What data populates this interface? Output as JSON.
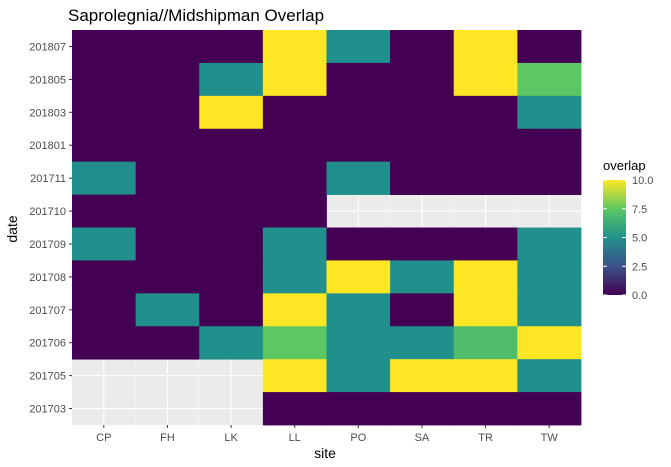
{
  "chart_data": {
    "type": "heatmap",
    "title": "Saprolegnia//Midshipman Overlap",
    "xlabel": "site",
    "ylabel": "date",
    "x_categories": [
      "CP",
      "FH",
      "LK",
      "LL",
      "PO",
      "SA",
      "TR",
      "TW"
    ],
    "y_categories": [
      "201703",
      "201705",
      "201706",
      "201707",
      "201708",
      "201709",
      "201710",
      "201711",
      "201801",
      "201803",
      "201805",
      "201807"
    ],
    "value_range": [
      0,
      10
    ],
    "colormap": [
      "#440154",
      "#3b528b",
      "#21908c",
      "#5dc863",
      "#fde725"
    ],
    "legend": {
      "title": "overlap",
      "placement": "right",
      "breaks": [
        0,
        2.5,
        5,
        7.5,
        10
      ],
      "break_labels": [
        "0.0",
        "2.5",
        "5.0",
        "7.5",
        "10.0"
      ]
    },
    "grid": true,
    "cells": [
      {
        "date": "201807",
        "site": "CP",
        "value": 0
      },
      {
        "date": "201807",
        "site": "FH",
        "value": 0
      },
      {
        "date": "201807",
        "site": "LK",
        "value": 0
      },
      {
        "date": "201807",
        "site": "LL",
        "value": 10
      },
      {
        "date": "201807",
        "site": "PO",
        "value": 5
      },
      {
        "date": "201807",
        "site": "SA",
        "value": 0
      },
      {
        "date": "201807",
        "site": "TR",
        "value": 10
      },
      {
        "date": "201807",
        "site": "TW",
        "value": 0
      },
      {
        "date": "201805",
        "site": "CP",
        "value": 0
      },
      {
        "date": "201805",
        "site": "FH",
        "value": 0
      },
      {
        "date": "201805",
        "site": "LK",
        "value": 5
      },
      {
        "date": "201805",
        "site": "LL",
        "value": 10
      },
      {
        "date": "201805",
        "site": "PO",
        "value": 0
      },
      {
        "date": "201805",
        "site": "SA",
        "value": 0
      },
      {
        "date": "201805",
        "site": "TR",
        "value": 10
      },
      {
        "date": "201805",
        "site": "TW",
        "value": 7.5
      },
      {
        "date": "201803",
        "site": "CP",
        "value": 0
      },
      {
        "date": "201803",
        "site": "FH",
        "value": 0
      },
      {
        "date": "201803",
        "site": "LK",
        "value": 10
      },
      {
        "date": "201803",
        "site": "LL",
        "value": 0
      },
      {
        "date": "201803",
        "site": "PO",
        "value": 0
      },
      {
        "date": "201803",
        "site": "SA",
        "value": 0
      },
      {
        "date": "201803",
        "site": "TR",
        "value": 0
      },
      {
        "date": "201803",
        "site": "TW",
        "value": 5
      },
      {
        "date": "201801",
        "site": "CP",
        "value": 0
      },
      {
        "date": "201801",
        "site": "FH",
        "value": 0
      },
      {
        "date": "201801",
        "site": "LK",
        "value": 0
      },
      {
        "date": "201801",
        "site": "LL",
        "value": 0
      },
      {
        "date": "201801",
        "site": "PO",
        "value": 0
      },
      {
        "date": "201801",
        "site": "SA",
        "value": 0
      },
      {
        "date": "201801",
        "site": "TR",
        "value": 0
      },
      {
        "date": "201801",
        "site": "TW",
        "value": 0
      },
      {
        "date": "201711",
        "site": "CP",
        "value": 5
      },
      {
        "date": "201711",
        "site": "FH",
        "value": 0
      },
      {
        "date": "201711",
        "site": "LK",
        "value": 0
      },
      {
        "date": "201711",
        "site": "LL",
        "value": 0
      },
      {
        "date": "201711",
        "site": "PO",
        "value": 5
      },
      {
        "date": "201711",
        "site": "SA",
        "value": 0
      },
      {
        "date": "201711",
        "site": "TR",
        "value": 0
      },
      {
        "date": "201711",
        "site": "TW",
        "value": 0
      },
      {
        "date": "201710",
        "site": "CP",
        "value": 0
      },
      {
        "date": "201710",
        "site": "FH",
        "value": 0
      },
      {
        "date": "201710",
        "site": "LK",
        "value": 0
      },
      {
        "date": "201710",
        "site": "LL",
        "value": 0
      },
      {
        "date": "201709",
        "site": "CP",
        "value": 5
      },
      {
        "date": "201709",
        "site": "FH",
        "value": 0
      },
      {
        "date": "201709",
        "site": "LK",
        "value": 0
      },
      {
        "date": "201709",
        "site": "LL",
        "value": 5
      },
      {
        "date": "201709",
        "site": "PO",
        "value": 0
      },
      {
        "date": "201709",
        "site": "SA",
        "value": 0
      },
      {
        "date": "201709",
        "site": "TR",
        "value": 0
      },
      {
        "date": "201709",
        "site": "TW",
        "value": 5
      },
      {
        "date": "201708",
        "site": "CP",
        "value": 0
      },
      {
        "date": "201708",
        "site": "FH",
        "value": 0
      },
      {
        "date": "201708",
        "site": "LK",
        "value": 0
      },
      {
        "date": "201708",
        "site": "LL",
        "value": 5
      },
      {
        "date": "201708",
        "site": "PO",
        "value": 10
      },
      {
        "date": "201708",
        "site": "SA",
        "value": 5
      },
      {
        "date": "201708",
        "site": "TR",
        "value": 10
      },
      {
        "date": "201708",
        "site": "TW",
        "value": 5
      },
      {
        "date": "201707",
        "site": "CP",
        "value": 0
      },
      {
        "date": "201707",
        "site": "FH",
        "value": 5
      },
      {
        "date": "201707",
        "site": "LK",
        "value": 0
      },
      {
        "date": "201707",
        "site": "LL",
        "value": 10
      },
      {
        "date": "201707",
        "site": "PO",
        "value": 5
      },
      {
        "date": "201707",
        "site": "SA",
        "value": 0
      },
      {
        "date": "201707",
        "site": "TR",
        "value": 10
      },
      {
        "date": "201707",
        "site": "TW",
        "value": 5
      },
      {
        "date": "201706",
        "site": "CP",
        "value": 0
      },
      {
        "date": "201706",
        "site": "FH",
        "value": 0
      },
      {
        "date": "201706",
        "site": "LK",
        "value": 5
      },
      {
        "date": "201706",
        "site": "LL",
        "value": 7.5
      },
      {
        "date": "201706",
        "site": "PO",
        "value": 5
      },
      {
        "date": "201706",
        "site": "SA",
        "value": 5
      },
      {
        "date": "201706",
        "site": "TR",
        "value": 7
      },
      {
        "date": "201706",
        "site": "TW",
        "value": 10
      },
      {
        "date": "201705",
        "site": "LL",
        "value": 10
      },
      {
        "date": "201705",
        "site": "PO",
        "value": 5
      },
      {
        "date": "201705",
        "site": "SA",
        "value": 10
      },
      {
        "date": "201705",
        "site": "TR",
        "value": 10
      },
      {
        "date": "201705",
        "site": "TW",
        "value": 5
      },
      {
        "date": "201703",
        "site": "LL",
        "value": 0
      },
      {
        "date": "201703",
        "site": "PO",
        "value": 0
      },
      {
        "date": "201703",
        "site": "SA",
        "value": 0
      },
      {
        "date": "201703",
        "site": "TR",
        "value": 0
      },
      {
        "date": "201703",
        "site": "TW",
        "value": 0
      }
    ]
  }
}
